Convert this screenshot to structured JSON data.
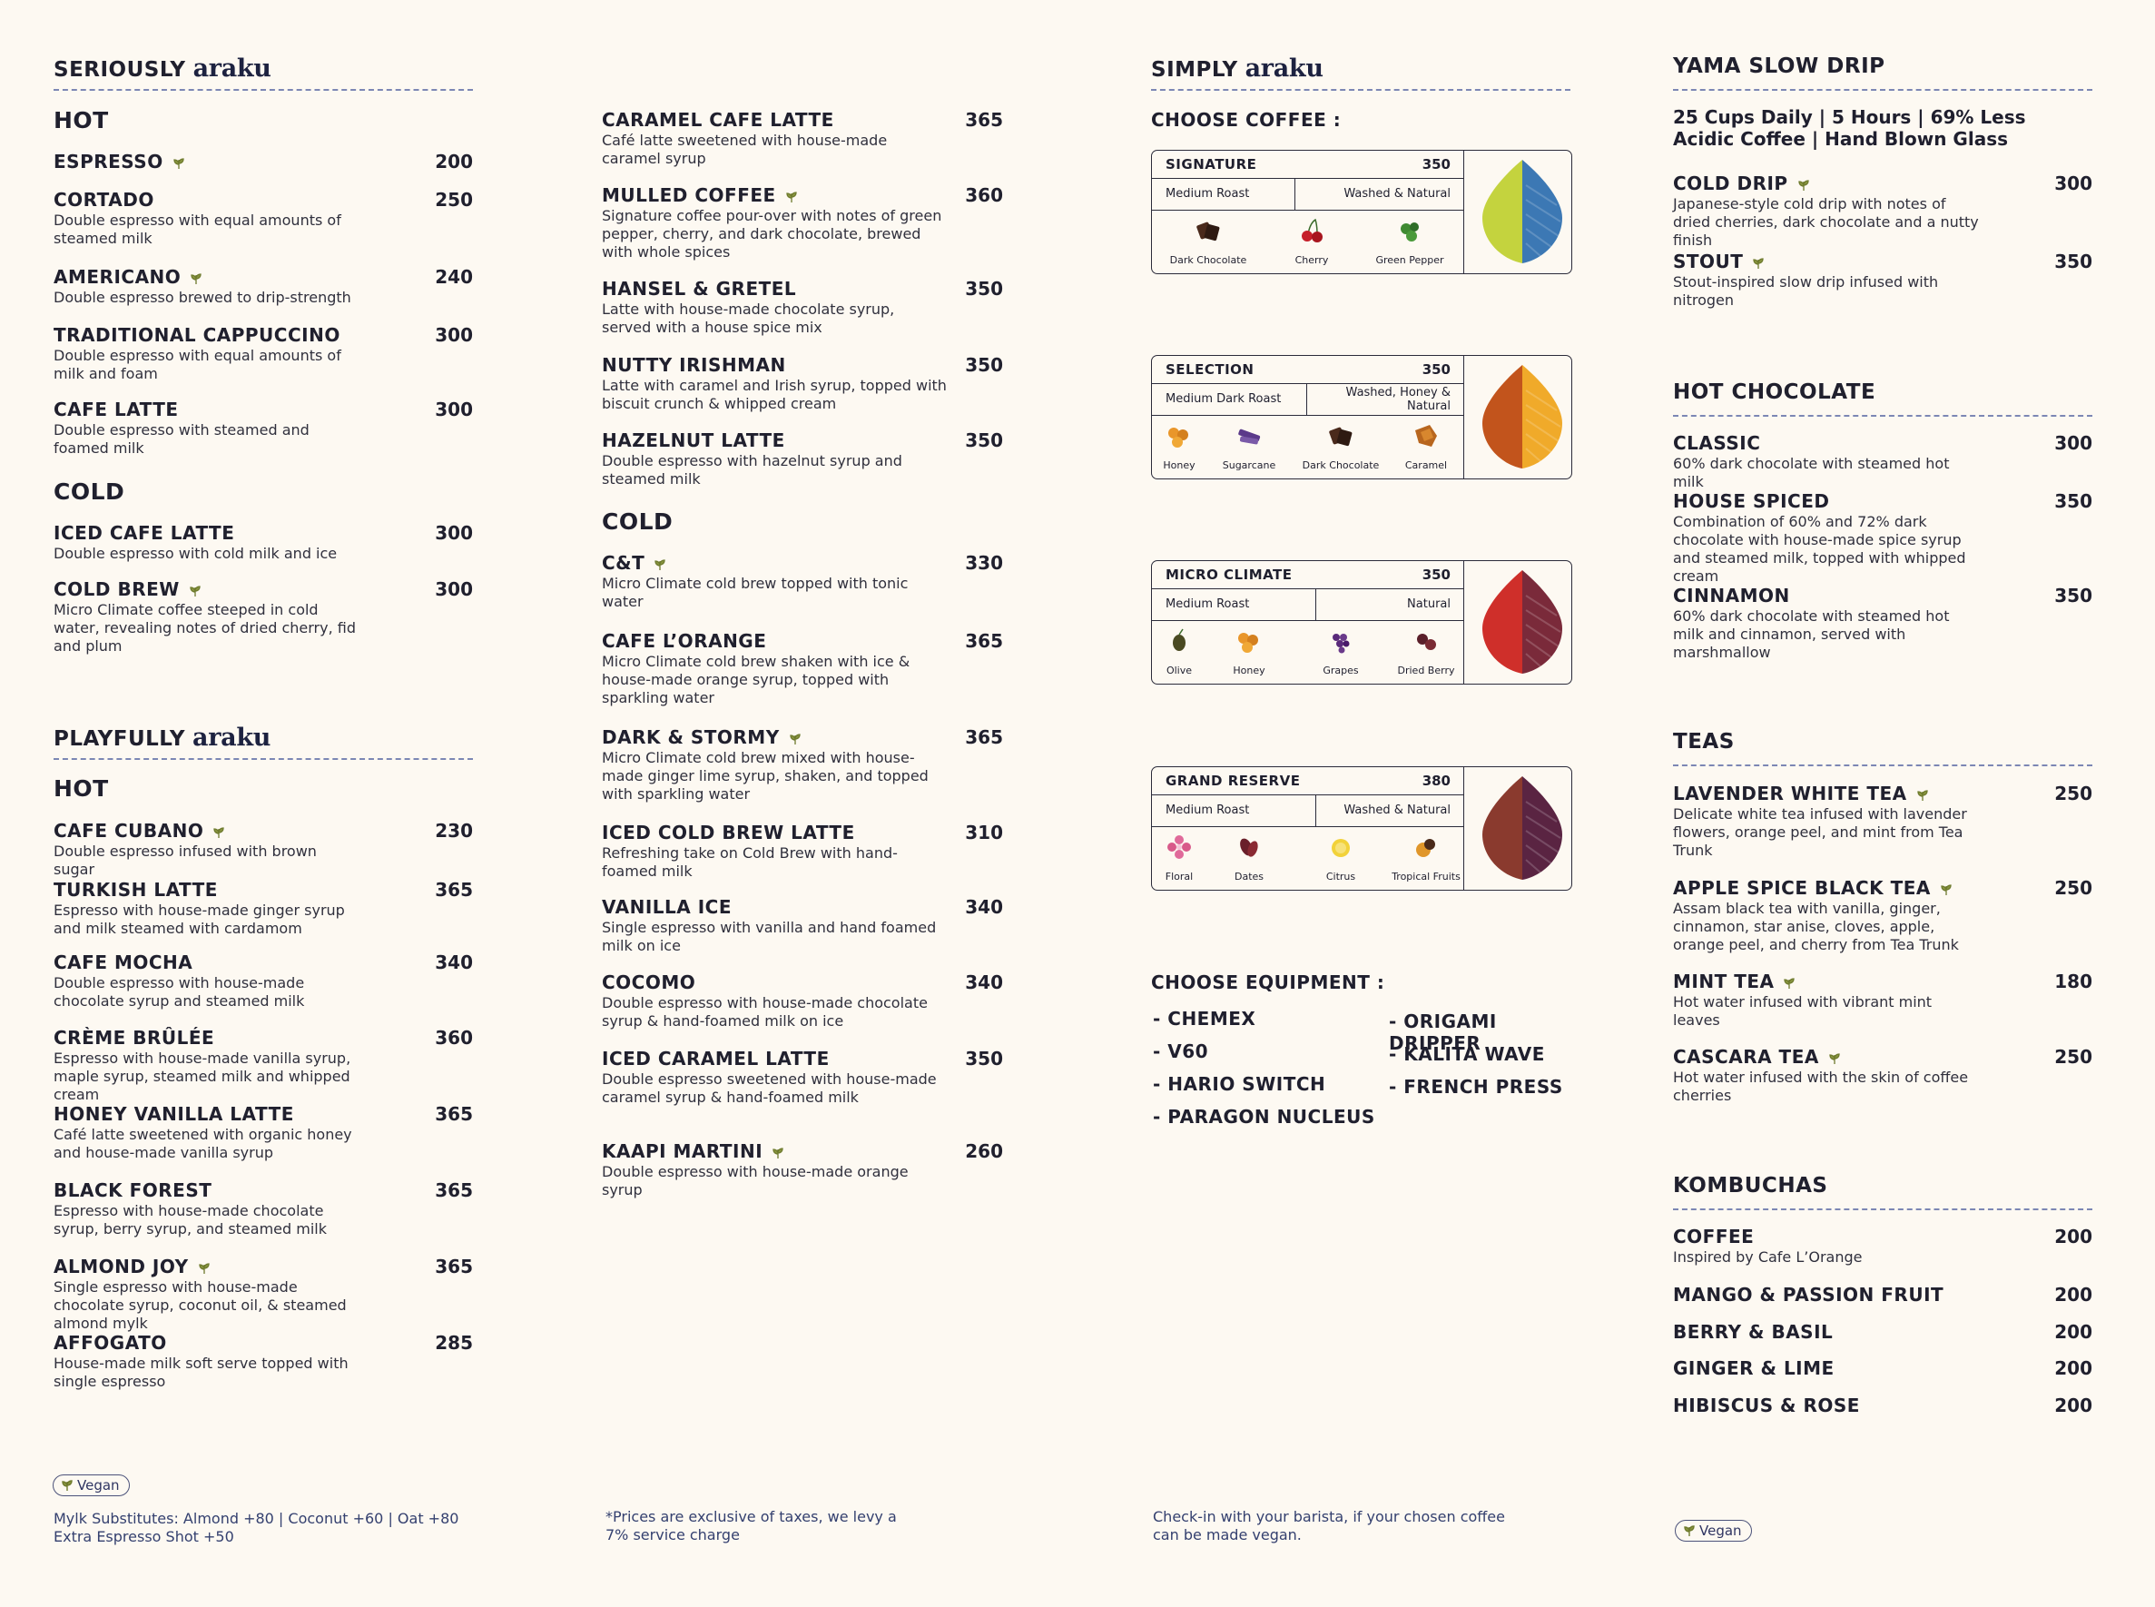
{
  "seriously": {
    "heading": "SERIOUSLY",
    "brand": "araku",
    "hot_title": "HOT",
    "hot": [
      {
        "name": "ESPRESSO",
        "vegan": true,
        "price": "200",
        "desc": ""
      },
      {
        "name": "CORTADO",
        "vegan": false,
        "price": "250",
        "desc": "Double espresso with equal amounts of steamed milk"
      },
      {
        "name": "AMERICANO",
        "vegan": true,
        "price": "240",
        "desc": "Double espresso brewed to drip-strength"
      },
      {
        "name": "TRADITIONAL CAPPUCCINO",
        "vegan": false,
        "price": "300",
        "desc": "Double espresso with equal amounts of milk and foam"
      },
      {
        "name": "CAFE LATTE",
        "vegan": false,
        "price": "300",
        "desc": "Double espresso with steamed and foamed milk"
      }
    ],
    "cold_title": "COLD",
    "cold": [
      {
        "name": "ICED CAFE LATTE",
        "vegan": false,
        "price": "300",
        "desc": "Double espresso with cold milk and ice"
      },
      {
        "name": "COLD BREW",
        "vegan": true,
        "price": "300",
        "desc": "Micro Climate coffee steeped in cold water, revealing notes of dried cherry, fid and plum"
      }
    ]
  },
  "playfully": {
    "heading": "PLAYFULLY",
    "brand": "araku",
    "hot_title": "HOT",
    "hot": [
      {
        "name": "CAFE CUBANO",
        "vegan": true,
        "price": "230",
        "desc": "Double espresso infused with brown sugar"
      },
      {
        "name": "TURKISH LATTE",
        "vegan": false,
        "price": "365",
        "desc": "Espresso with house-made ginger syrup and milk steamed with cardamom"
      },
      {
        "name": "CAFE MOCHA",
        "vegan": false,
        "price": "340",
        "desc": "Double espresso with house-made chocolate syrup and steamed milk"
      },
      {
        "name": "CRÈME BRÛLÉE",
        "vegan": false,
        "price": "360",
        "desc": "Espresso with house-made vanilla syrup, maple syrup, steamed milk and whipped cream"
      },
      {
        "name": "HONEY VANILLA LATTE",
        "vegan": false,
        "price": "365",
        "desc": "Café latte sweetened with organic honey and house-made vanilla syrup"
      },
      {
        "name": "BLACK FOREST",
        "vegan": false,
        "price": "365",
        "desc": "Espresso with house-made chocolate syrup, berry syrup, and steamed milk"
      },
      {
        "name": "ALMOND JOY",
        "vegan": true,
        "price": "365",
        "desc": "Single espresso with house-made chocolate syrup, coconut oil, & steamed almond mylk"
      },
      {
        "name": "AFFOGATO",
        "vegan": false,
        "price": "285",
        "desc": "House-made milk soft serve topped with single espresso"
      }
    ]
  },
  "col2": {
    "hot": [
      {
        "name": "CARAMEL CAFE LATTE",
        "vegan": false,
        "price": "365",
        "desc": "Café latte sweetened with house-made caramel syrup"
      },
      {
        "name": "MULLED COFFEE",
        "vegan": true,
        "price": "360",
        "desc": "Signature coffee pour-over with notes of green pepper, cherry, and dark chocolate, brewed with whole spices"
      },
      {
        "name": "HANSEL & GRETEL",
        "vegan": false,
        "price": "350",
        "desc": "Latte with house-made chocolate syrup, served with a house spice mix"
      },
      {
        "name": "NUTTY IRISHMAN",
        "vegan": false,
        "price": "350",
        "desc": "Latte with caramel and Irish syrup, topped with biscuit crunch & whipped cream"
      },
      {
        "name": "HAZELNUT LATTE",
        "vegan": false,
        "price": "350",
        "desc": "Double espresso with hazelnut syrup and steamed milk"
      }
    ],
    "cold_title": "COLD",
    "cold": [
      {
        "name": "C&T",
        "vegan": true,
        "price": "330",
        "desc": "Micro Climate cold brew topped with tonic water"
      },
      {
        "name": "CAFE L’ORANGE",
        "vegan": false,
        "price": "365",
        "desc": "Micro Climate cold brew shaken with ice & house-made orange syrup, topped with sparkling water"
      },
      {
        "name": "DARK & STORMY",
        "vegan": true,
        "price": "365",
        "desc": "Micro Climate cold brew mixed with house-made ginger lime syrup, shaken, and topped with sparkling water"
      },
      {
        "name": "ICED COLD BREW LATTE",
        "vegan": false,
        "price": "310",
        "desc": "Refreshing take on Cold Brew with hand-foamed milk"
      },
      {
        "name": "VANILLA ICE",
        "vegan": false,
        "price": "340",
        "desc": "Single espresso with vanilla and hand foamed milk on ice"
      },
      {
        "name": "COCOMO",
        "vegan": false,
        "price": "340",
        "desc": "Double espresso with house-made chocolate syrup & hand-foamed milk on ice"
      },
      {
        "name": "ICED CARAMEL LATTE",
        "vegan": false,
        "price": "350",
        "desc": "Double espresso sweetened with house-made caramel syrup & hand-foamed milk"
      },
      {
        "name": "KAAPI MARTINI",
        "vegan": true,
        "price": "260",
        "desc": "Double espresso with house-made orange syrup"
      }
    ]
  },
  "simply": {
    "heading": "SIMPLY",
    "brand": "araku",
    "choose_coffee": "CHOOSE COFFEE :",
    "cards": [
      {
        "name": "SIGNATURE",
        "price": "350",
        "roast": "Medium Roast",
        "process": "Washed & Natural",
        "notes": [
          "Dark Chocolate",
          "Cherry",
          "Green Pepper"
        ],
        "leaf_colors": [
          "#c4d33e",
          "#3c78b4"
        ]
      },
      {
        "name": "SELECTION",
        "price": "350",
        "roast": "Medium Dark Roast",
        "process": "Washed, Honey & Natural",
        "notes": [
          "Honey",
          "Sugarcane",
          "Dark Chocolate",
          "Caramel"
        ],
        "leaf_colors": [
          "#c2541c",
          "#f0aa2a"
        ]
      },
      {
        "name": "MICRO CLIMATE",
        "price": "350",
        "roast": "Medium Roast",
        "process": "Natural",
        "notes": [
          "Olive",
          "Honey",
          "Grapes",
          "Dried Berry"
        ],
        "leaf_colors": [
          "#cf2f2a",
          "#7a2a3a"
        ]
      },
      {
        "name": "GRAND RESERVE",
        "price": "380",
        "roast": "Medium Roast",
        "process": "Washed & Natural",
        "notes": [
          "Floral",
          "Dates",
          "Citrus",
          "Tropical Fruits"
        ],
        "leaf_colors": [
          "#8a3a2e",
          "#5a2442"
        ]
      }
    ],
    "choose_equipment": "CHOOSE EQUIPMENT :",
    "equipment_left": [
      "- CHEMEX",
      "- V60",
      "- HARIO SWITCH",
      "- PARAGON NUCLEUS"
    ],
    "equipment_right": [
      "- ORIGAMI DRIPPER",
      "- KALITA WAVE",
      "- FRENCH PRESS"
    ]
  },
  "yama": {
    "heading": "YAMA SLOW DRIP",
    "tagline": "25 Cups Daily | 5 Hours | 69% Less Acidic Coffee | Hand Blown Glass",
    "items": [
      {
        "name": "COLD DRIP",
        "vegan": true,
        "price": "300",
        "desc": "Japanese-style cold drip with notes of dried cherries, dark chocolate and a nutty finish"
      },
      {
        "name": "STOUT",
        "vegan": true,
        "price": "350",
        "desc": "Stout-inspired slow drip infused with nitrogen"
      }
    ]
  },
  "hot_chocolate": {
    "heading": "HOT CHOCOLATE",
    "items": [
      {
        "name": "CLASSIC",
        "vegan": false,
        "price": "300",
        "desc": "60% dark chocolate with steamed hot milk"
      },
      {
        "name": "HOUSE SPICED",
        "vegan": false,
        "price": "350",
        "desc": "Combination of 60% and 72% dark chocolate with house-made spice syrup and steamed milk, topped with whipped cream"
      },
      {
        "name": "CINNAMON",
        "vegan": false,
        "price": "350",
        "desc": "60% dark chocolate with steamed hot milk and cinnamon, served with marshmallow"
      }
    ]
  },
  "teas": {
    "heading": "TEAS",
    "items": [
      {
        "name": "LAVENDER WHITE TEA",
        "vegan": true,
        "price": "250",
        "desc": "Delicate white tea infused with lavender flowers, orange peel, and mint from Tea Trunk"
      },
      {
        "name": "APPLE SPICE BLACK TEA",
        "vegan": true,
        "price": "250",
        "desc": "Assam black tea with vanilla, ginger, cinnamon, star anise, cloves, apple, orange peel, and cherry from Tea Trunk"
      },
      {
        "name": "MINT TEA",
        "vegan": true,
        "price": "180",
        "desc": "Hot water infused with vibrant mint leaves"
      },
      {
        "name": "CASCARA TEA",
        "vegan": true,
        "price": "250",
        "desc": "Hot water infused with the skin of coffee cherries"
      }
    ]
  },
  "kombuchas": {
    "heading": "KOMBUCHAS",
    "items": [
      {
        "name": "COFFEE",
        "price": "200",
        "desc": "Inspired by Cafe L’Orange"
      },
      {
        "name": "MANGO & PASSION FRUIT",
        "price": "200",
        "desc": ""
      },
      {
        "name": "BERRY & BASIL",
        "price": "200",
        "desc": ""
      },
      {
        "name": "GINGER & LIME",
        "price": "200",
        "desc": ""
      },
      {
        "name": "HIBISCUS & ROSE",
        "price": "200",
        "desc": ""
      }
    ]
  },
  "footer": {
    "vegan_label": "Vegan",
    "mylk_line1": "Mylk Substitutes: Almond +80 | Coconut +60 | Oat +80",
    "mylk_line2": "Extra Espresso Shot +50",
    "tax_note": "*Prices are exclusive of taxes, we levy a 7% service charge",
    "barista_note": "Check-in with your barista, if your chosen coffee can be made vegan.",
    "vegan_label_right": "Vegan"
  },
  "colors": {
    "background": "#fdf9f2",
    "ink": "#1f1f2e",
    "footer_ink": "#34406f",
    "vegan_leaf": "#6e7a2e",
    "rule": "#7c87b4"
  }
}
